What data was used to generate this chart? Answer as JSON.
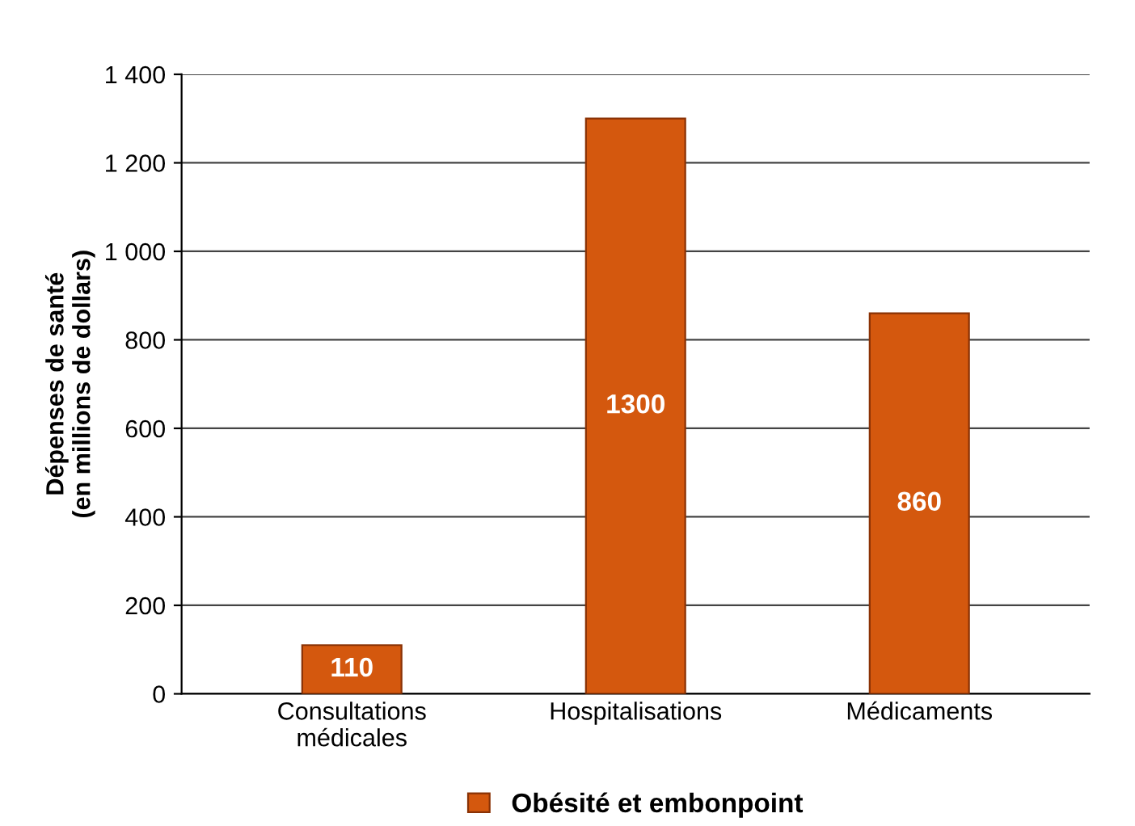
{
  "chart_data": {
    "type": "bar",
    "ylabel": "Dépenses de santé\n(en millions de dollars)",
    "categories": [
      "Consultations\nmédicales",
      "Hospitalisations",
      "Médicaments"
    ],
    "series": [
      {
        "name": "Obésité et embonpoint",
        "color": "#d4580e",
        "values": [
          110,
          1300,
          860
        ]
      }
    ],
    "ylim": [
      0,
      1400
    ],
    "yticks": [
      0,
      200,
      400,
      600,
      800,
      {
        "value": 1000,
        "label": "1 000"
      },
      {
        "value": 1200,
        "label": "1 200"
      },
      {
        "value": 1400,
        "label": "1 400"
      }
    ],
    "grid": "y",
    "legend": "bottom",
    "data_labels": true
  }
}
